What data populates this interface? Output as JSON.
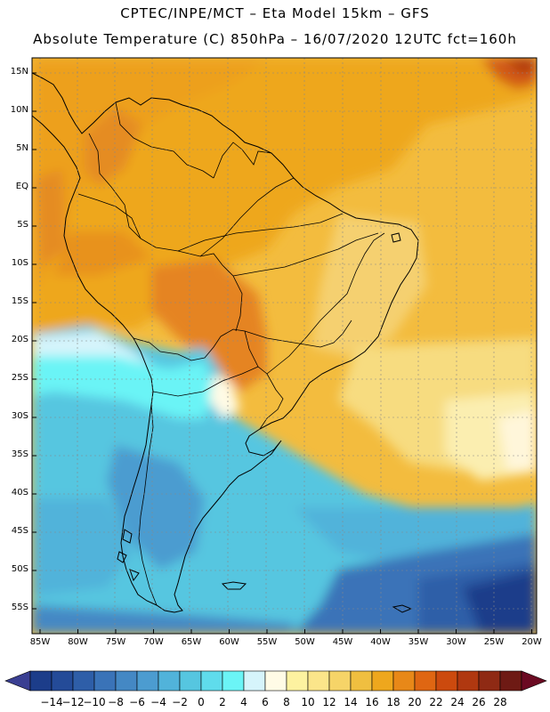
{
  "title": {
    "line1": "CPTEC/INPE/MCT –  Eta Model 15km – GFS",
    "line2": "Absolute Temperature (C) 850hPa – 16/07/2020 12UTC fct=160h"
  },
  "map": {
    "variable": "Absolute Temperature",
    "units": "C",
    "level": "850hPa",
    "lat_labels": [
      "15N",
      "10N",
      "5N",
      "EQ",
      "5S",
      "10S",
      "15S",
      "20S",
      "25S",
      "30S",
      "35S",
      "40S",
      "45S",
      "50S",
      "55S"
    ],
    "lon_labels": [
      "85W",
      "80W",
      "75W",
      "70W",
      "65W",
      "60W",
      "55W",
      "50W",
      "45W",
      "40W",
      "35W",
      "30W",
      "25W",
      "20W"
    ]
  },
  "colorbar": {
    "labels": [
      "-14",
      "-12",
      "-10",
      "-8",
      "-6",
      "-4",
      "-2",
      "0",
      "2",
      "4",
      "6",
      "8",
      "10",
      "12",
      "14",
      "16",
      "18",
      "20",
      "22",
      "24",
      "26",
      "28"
    ],
    "colors": [
      "#1c3d8a",
      "#244b98",
      "#2e5ea8",
      "#3a73b8",
      "#4488c4",
      "#4c9cd0",
      "#51b3da",
      "#56c6e0",
      "#5fdcec",
      "#6bf4f6",
      "#d6f4fb",
      "#fffbe6",
      "#fdf2a0",
      "#fbe58a",
      "#f6d468",
      "#f0bf40",
      "#eea71d",
      "#e88818",
      "#df6612",
      "#cc4a0e",
      "#b03810",
      "#8f2a14",
      "#6e1a14"
    ],
    "under_color": "#3a3f92",
    "over_color": "#6b0a22"
  }
}
